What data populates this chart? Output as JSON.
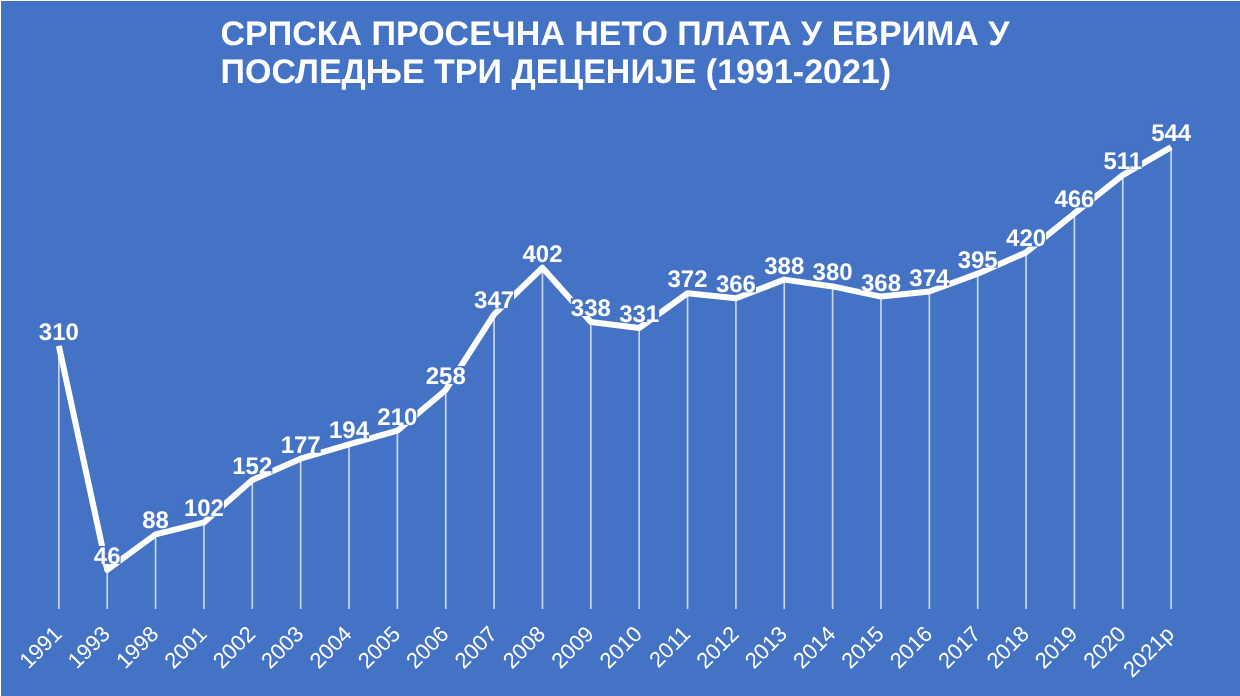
{
  "chart_data": {
    "type": "bar",
    "title": "СРПСКА ПРОСЕЧНА НЕТО ПЛАТА У ЕВРИМА У ПОСЛЕДЊЕ ТРИ ДЕЦЕНИЈЕ (1991-2021)",
    "categories": [
      "1991",
      "1993",
      "1998",
      "2001",
      "2002",
      "2003",
      "2004",
      "2005",
      "2006",
      "2007",
      "2008",
      "2009",
      "2010",
      "2011",
      "2012",
      "2013",
      "2014",
      "2015",
      "2016",
      "2017",
      "2018",
      "2019",
      "2020",
      "2021р"
    ],
    "series": [
      {
        "color": "#ffffff",
        "values": [
          310,
          46,
          88,
          102,
          152,
          177,
          194,
          210,
          258,
          347,
          402,
          338,
          331,
          372,
          366,
          388,
          380,
          368,
          374,
          395,
          420,
          466,
          511,
          544
        ],
        "value_labels": [
          "310",
          "46",
          "88",
          "102",
          "152",
          "177",
          "194",
          "210",
          "258",
          "347",
          "402",
          "338",
          "331",
          "372",
          "366",
          "388",
          "380",
          "368",
          "374",
          "395",
          "420",
          "466",
          "511",
          "544"
        ]
      },
      {
        "type": "line",
        "color": "#ffffff",
        "values": [
          310,
          46,
          88,
          102,
          152,
          177,
          194,
          210,
          258,
          347,
          402,
          338,
          331,
          372,
          366,
          388,
          380,
          368,
          374,
          395,
          420,
          466,
          511,
          544
        ]
      }
    ],
    "marker": "none",
    "line_style": "solid",
    "tick_labels": "x"
  }
}
